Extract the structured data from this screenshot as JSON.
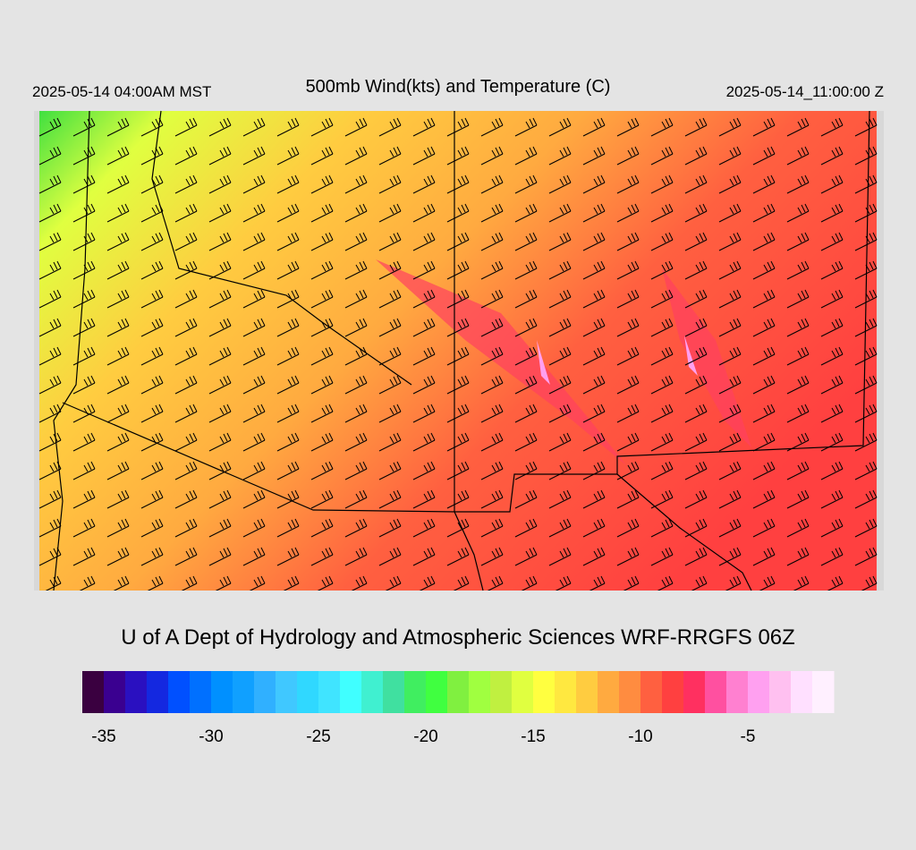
{
  "header": {
    "left": "2025-05-14 04:00AM MST",
    "title": "500mb Wind(kts) and Temperature (C)",
    "right": "2025-05-14_11:00:00 Z"
  },
  "footer": {
    "credit": "U of A Dept of Hydrology and Atmospheric Sciences WRF-RRGFS 06Z"
  },
  "colorbar": {
    "range": [
      -36,
      -1
    ],
    "ticks": [
      -35,
      -30,
      -25,
      -20,
      -15,
      -10,
      -5
    ],
    "colors": [
      "#3a0040",
      "#3a0090",
      "#2a10c0",
      "#1428e0",
      "#0050ff",
      "#0070ff",
      "#0090ff",
      "#10a0ff",
      "#30b0ff",
      "#40c8ff",
      "#30d8ff",
      "#40e4ff",
      "#40ffff",
      "#40f0d0",
      "#40e0a0",
      "#40ee60",
      "#40ff40",
      "#80f040",
      "#a0ff40",
      "#c0f040",
      "#e0ff40",
      "#ffff40",
      "#ffe840",
      "#ffcc40",
      "#ffaa40",
      "#ff8c40",
      "#ff6040",
      "#ff4040",
      "#ff3060",
      "#ff50a0",
      "#ff80d0",
      "#ffa0f0",
      "#ffc0f0",
      "#ffe0ff",
      "#fff0ff"
    ]
  }
}
